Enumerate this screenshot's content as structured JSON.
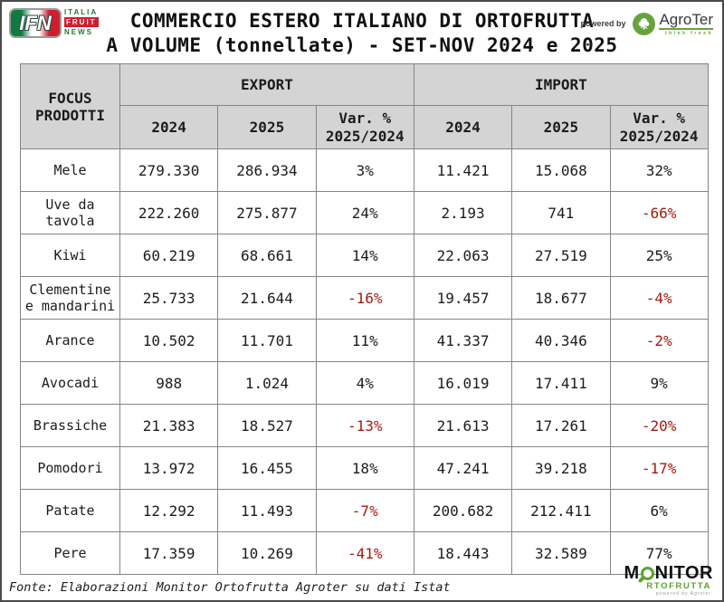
{
  "header": {
    "title_line1": "COMMERCIO ESTERO ITALIANO DI ORTOFRUTTA",
    "title_line2": "A VOLUME (tonnellate) - SET-NOV 2024 e 2025",
    "ifn_logo": {
      "acronym": "IFN",
      "italia": "ITALIA",
      "fruit": "FRUIT",
      "news": "NEWS"
    },
    "powered_by": "powered by",
    "agroter": {
      "name": "AgroTer",
      "tagline": "think fresh"
    }
  },
  "table": {
    "col_product": "FOCUS PRODOTTI",
    "group_export": "EXPORT",
    "group_import": "IMPORT",
    "sub_2024": "2024",
    "sub_2025": "2025",
    "var_line1": "Var. %",
    "var_line2": "2025/2024",
    "rows": [
      {
        "product": "Mele",
        "export_2024": "279.330",
        "export_2025": "286.934",
        "export_var": "3%",
        "import_2024": "11.421",
        "import_2025": "15.068",
        "import_var": "32%"
      },
      {
        "product": "Uve da tavola",
        "export_2024": "222.260",
        "export_2025": "275.877",
        "export_var": "24%",
        "import_2024": "2.193",
        "import_2025": "741",
        "import_var": "-66%"
      },
      {
        "product": "Kiwi",
        "export_2024": "60.219",
        "export_2025": "68.661",
        "export_var": "14%",
        "import_2024": "22.063",
        "import_2025": "27.519",
        "import_var": "25%"
      },
      {
        "product": "Clementine e mandarini",
        "export_2024": "25.733",
        "export_2025": "21.644",
        "export_var": "-16%",
        "import_2024": "19.457",
        "import_2025": "18.677",
        "import_var": "-4%"
      },
      {
        "product": "Arance",
        "export_2024": "10.502",
        "export_2025": "11.701",
        "export_var": "11%",
        "import_2024": "41.337",
        "import_2025": "40.346",
        "import_var": "-2%"
      },
      {
        "product": "Avocadi",
        "export_2024": "988",
        "export_2025": "1.024",
        "export_var": "4%",
        "import_2024": "16.019",
        "import_2025": "17.411",
        "import_var": "9%"
      },
      {
        "product": "Brassiche",
        "export_2024": "21.383",
        "export_2025": "18.527",
        "export_var": "-13%",
        "import_2024": "21.613",
        "import_2025": "17.261",
        "import_var": "-20%"
      },
      {
        "product": "Pomodori",
        "export_2024": "13.972",
        "export_2025": "16.455",
        "export_var": "18%",
        "import_2024": "47.241",
        "import_2025": "39.218",
        "import_var": "-17%"
      },
      {
        "product": "Patate",
        "export_2024": "12.292",
        "export_2025": "11.493",
        "export_var": "-7%",
        "import_2024": "200.682",
        "import_2025": "212.411",
        "import_var": "6%"
      },
      {
        "product": "Pere",
        "export_2024": "17.359",
        "export_2025": "10.269",
        "export_var": "-41%",
        "import_2024": "18.443",
        "import_2025": "32.589",
        "import_var": "77%"
      }
    ]
  },
  "footer": {
    "source": "Fonte: Elaborazioni Monitor Ortofrutta Agroter su dati Istat",
    "monitor_logo": {
      "m": "M",
      "nitor": "NITOR",
      "rtofrutta": "RTOFRUTTA",
      "sub": "powered by Agroter"
    }
  },
  "colors": {
    "negative_value": "#a21b12",
    "text": "#1c1c1c",
    "header_bg": "#d4d4d4",
    "grid_border": "#858585",
    "brand_green": "#5aa42c",
    "brand_red": "#cf1f2e"
  },
  "chart_data": {
    "type": "table",
    "title": "COMMERCIO ESTERO ITALIANO DI ORTOFRUTTA A VOLUME (tonnellate) - SET-NOV 2024 e 2025",
    "row_label_header": "FOCUS PRODOTTI",
    "column_groups": [
      "EXPORT",
      "IMPORT"
    ],
    "columns": [
      "Export 2024",
      "Export 2025",
      "Export Var. % 2025/2024",
      "Import 2024",
      "Import 2025",
      "Import Var. % 2025/2024"
    ],
    "categories": [
      "Mele",
      "Uve da tavola",
      "Kiwi",
      "Clementine e mandarini",
      "Arance",
      "Avocadi",
      "Brassiche",
      "Pomodori",
      "Patate",
      "Pere"
    ],
    "rows": [
      [
        279330,
        286934,
        3,
        11421,
        15068,
        32
      ],
      [
        222260,
        275877,
        24,
        2193,
        741,
        -66
      ],
      [
        60219,
        68661,
        14,
        22063,
        27519,
        25
      ],
      [
        25733,
        21644,
        -16,
        19457,
        18677,
        -4
      ],
      [
        10502,
        11701,
        11,
        41337,
        40346,
        -2
      ],
      [
        988,
        1024,
        4,
        16019,
        17411,
        9
      ],
      [
        21383,
        18527,
        -13,
        21613,
        17261,
        -20
      ],
      [
        13972,
        16455,
        18,
        47241,
        39218,
        -17
      ],
      [
        12292,
        11493,
        -7,
        200682,
        212411,
        6
      ],
      [
        17359,
        10269,
        -41,
        18443,
        32589,
        77
      ]
    ],
    "units": "tonnellate",
    "source": "Fonte: Elaborazioni Monitor Ortofrutta Agroter su dati Istat"
  }
}
